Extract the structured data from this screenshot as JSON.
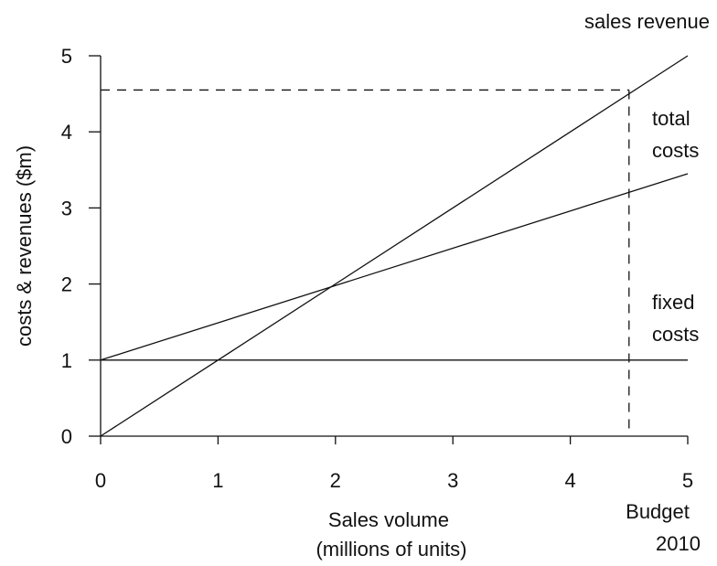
{
  "chart_data": {
    "type": "line",
    "title": "",
    "xlabel_lines": [
      "Sales volume",
      "(millions of units)"
    ],
    "ylabel": "costs & revenues ($m)",
    "xlim": [
      0,
      5
    ],
    "ylim": [
      0,
      5
    ],
    "x_ticks": [
      0,
      1,
      2,
      3,
      4,
      5
    ],
    "y_ticks": [
      0,
      1,
      2,
      3,
      4,
      5
    ],
    "grid": false,
    "series": [
      {
        "key": "sales_revenue",
        "label_lines": [
          "sales revenue"
        ],
        "x": [
          0,
          5
        ],
        "y": [
          0,
          5
        ],
        "color": "#111111"
      },
      {
        "key": "total_costs",
        "label_lines": [
          "total",
          "costs"
        ],
        "x": [
          0,
          5
        ],
        "y": [
          1,
          3.45
        ],
        "color": "#111111"
      },
      {
        "key": "fixed_costs",
        "label_lines": [
          "fixed",
          "costs"
        ],
        "x": [
          0,
          5
        ],
        "y": [
          1,
          1
        ],
        "color": "#111111"
      }
    ],
    "budget_marker": {
      "label_lines": [
        "Budget",
        "2010"
      ],
      "x": 4.5,
      "y": 4.55
    }
  }
}
